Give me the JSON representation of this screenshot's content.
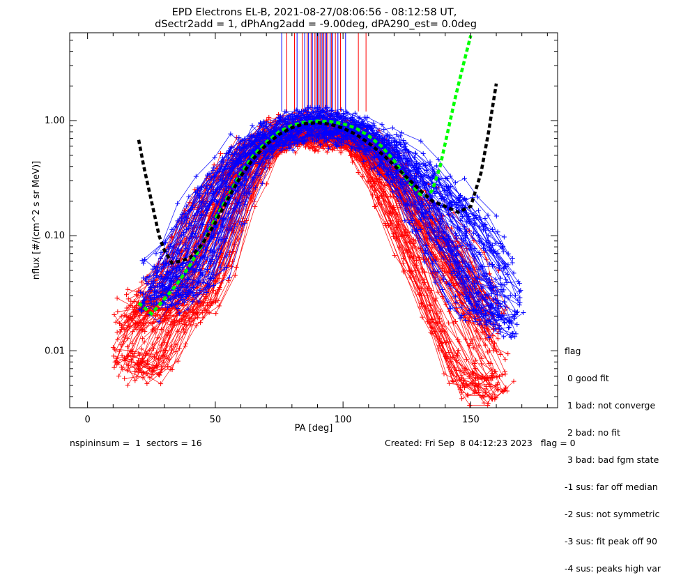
{
  "title_line1": "EPD Electrons EL-B, 2021-08-27/08:06:56 - 08:12:58 UT,",
  "title_line2": "dSectr2add = 1, dPhAng2add = -9.00deg, dPA290_est=   0.0deg",
  "legend": {
    "title": "flag",
    "items": [
      " 0 good fit",
      " 1 bad: not converge",
      " 2 bad: no fit",
      " 3 bad: bad fgm state",
      "-1 sus: far off median",
      "-2 sus: not symmetric",
      "-3 sus: fit peak off 90",
      "-4 sus: peaks high var"
    ]
  },
  "footer": {
    "left": "nspininsum =  1  sectors = 16",
    "right": "Created: Fri Sep  8 04:12:23 2023   flag = 0"
  },
  "colors": {
    "sector_a": "#ff0000",
    "sector_b": "#0000ff",
    "fit_good": "#00ff00",
    "fit_median": "#000000",
    "axis": "#000000"
  },
  "chart_data": {
    "type": "line",
    "title": "EPD Electrons EL-B, 2021-08-27/08:06:56 - 08:12:58 UT,",
    "subtitle": "dSectr2add = 1, dPhAng2add = -9.00deg, dPA290_est=   0.0deg",
    "xlabel": "PA [deg]",
    "ylabel": "nflux [#/(cm^2 s sr MeV)]",
    "xlim": [
      -7,
      184
    ],
    "ylim": [
      0.0032,
      5.8
    ],
    "yscale": "log",
    "xticks": [
      0,
      50,
      100,
      150
    ],
    "yticks": [
      0.01,
      0.1,
      1.0
    ],
    "ytick_labels": [
      "0.01",
      "0.10",
      "1.00"
    ],
    "marker": "+",
    "series": [
      {
        "color": "red",
        "bundle_size": 90,
        "note_values": "typical pitch-angle distribution of the red traces, data units",
        "x": [
          10,
          20,
          30,
          40,
          50,
          60,
          65,
          70,
          80,
          90,
          100,
          110,
          120,
          130,
          140,
          150,
          160,
          167
        ],
        "y": [
          0.008,
          0.02,
          0.025,
          0.04,
          0.15,
          0.4,
          0.55,
          0.7,
          0.85,
          0.9,
          0.8,
          0.6,
          0.3,
          0.12,
          0.05,
          0.02,
          0.008,
          0.005
        ]
      },
      {
        "color": "blue",
        "bundle_size": 70,
        "note_values": "typical pitch-angle distribution of the blue traces, data units",
        "x": [
          20,
          25,
          30,
          40,
          50,
          60,
          65,
          70,
          80,
          90,
          100,
          110,
          120,
          130,
          140,
          150,
          160,
          172
        ],
        "y": [
          0.03,
          0.035,
          0.04,
          0.06,
          0.2,
          0.45,
          0.6,
          0.75,
          0.9,
          1.0,
          0.9,
          0.8,
          0.5,
          0.3,
          0.15,
          0.07,
          0.03,
          0.02
        ]
      },
      {
        "color": "green",
        "style": "dashed",
        "x": [
          20,
          25,
          30,
          35,
          40,
          45,
          50,
          55,
          60,
          65,
          70,
          75,
          80,
          85,
          90,
          95,
          100,
          105,
          110,
          115,
          120,
          125,
          130,
          133,
          135,
          138,
          141,
          144,
          147,
          150
        ],
        "y": [
          0.026,
          0.021,
          0.028,
          0.038,
          0.055,
          0.085,
          0.14,
          0.22,
          0.35,
          0.5,
          0.65,
          0.8,
          0.91,
          0.97,
          0.99,
          0.98,
          0.94,
          0.86,
          0.74,
          0.6,
          0.45,
          0.31,
          0.23,
          0.22,
          0.25,
          0.4,
          0.8,
          1.6,
          3.0,
          5.5
        ]
      },
      {
        "color": "black",
        "style": "dashed",
        "x": [
          20,
          22,
          25,
          28,
          30,
          33,
          36,
          40,
          45,
          50,
          55,
          60,
          65,
          70,
          75,
          80,
          85,
          90,
          95,
          100,
          105,
          110,
          115,
          120,
          125,
          130,
          135,
          140,
          145,
          150,
          154,
          157,
          160
        ],
        "y": [
          0.68,
          0.4,
          0.2,
          0.1,
          0.075,
          0.058,
          0.06,
          0.064,
          0.085,
          0.13,
          0.21,
          0.33,
          0.47,
          0.62,
          0.76,
          0.87,
          0.94,
          0.96,
          0.93,
          0.86,
          0.76,
          0.64,
          0.52,
          0.41,
          0.32,
          0.25,
          0.2,
          0.18,
          0.16,
          0.18,
          0.35,
          0.8,
          2.1
        ]
      }
    ],
    "vertical_lines": {
      "description": "vertical lines from the bundle peak up to the top of the plot",
      "red_x": [
        78,
        81,
        84,
        86,
        87.5,
        89,
        90,
        91,
        92,
        93,
        94,
        95.5,
        97,
        99,
        106,
        109
      ],
      "blue_x": [
        76,
        82,
        85,
        86.5,
        88,
        89.5,
        90.5,
        91.5,
        92.5,
        93.5,
        95,
        96,
        98,
        101
      ]
    }
  }
}
